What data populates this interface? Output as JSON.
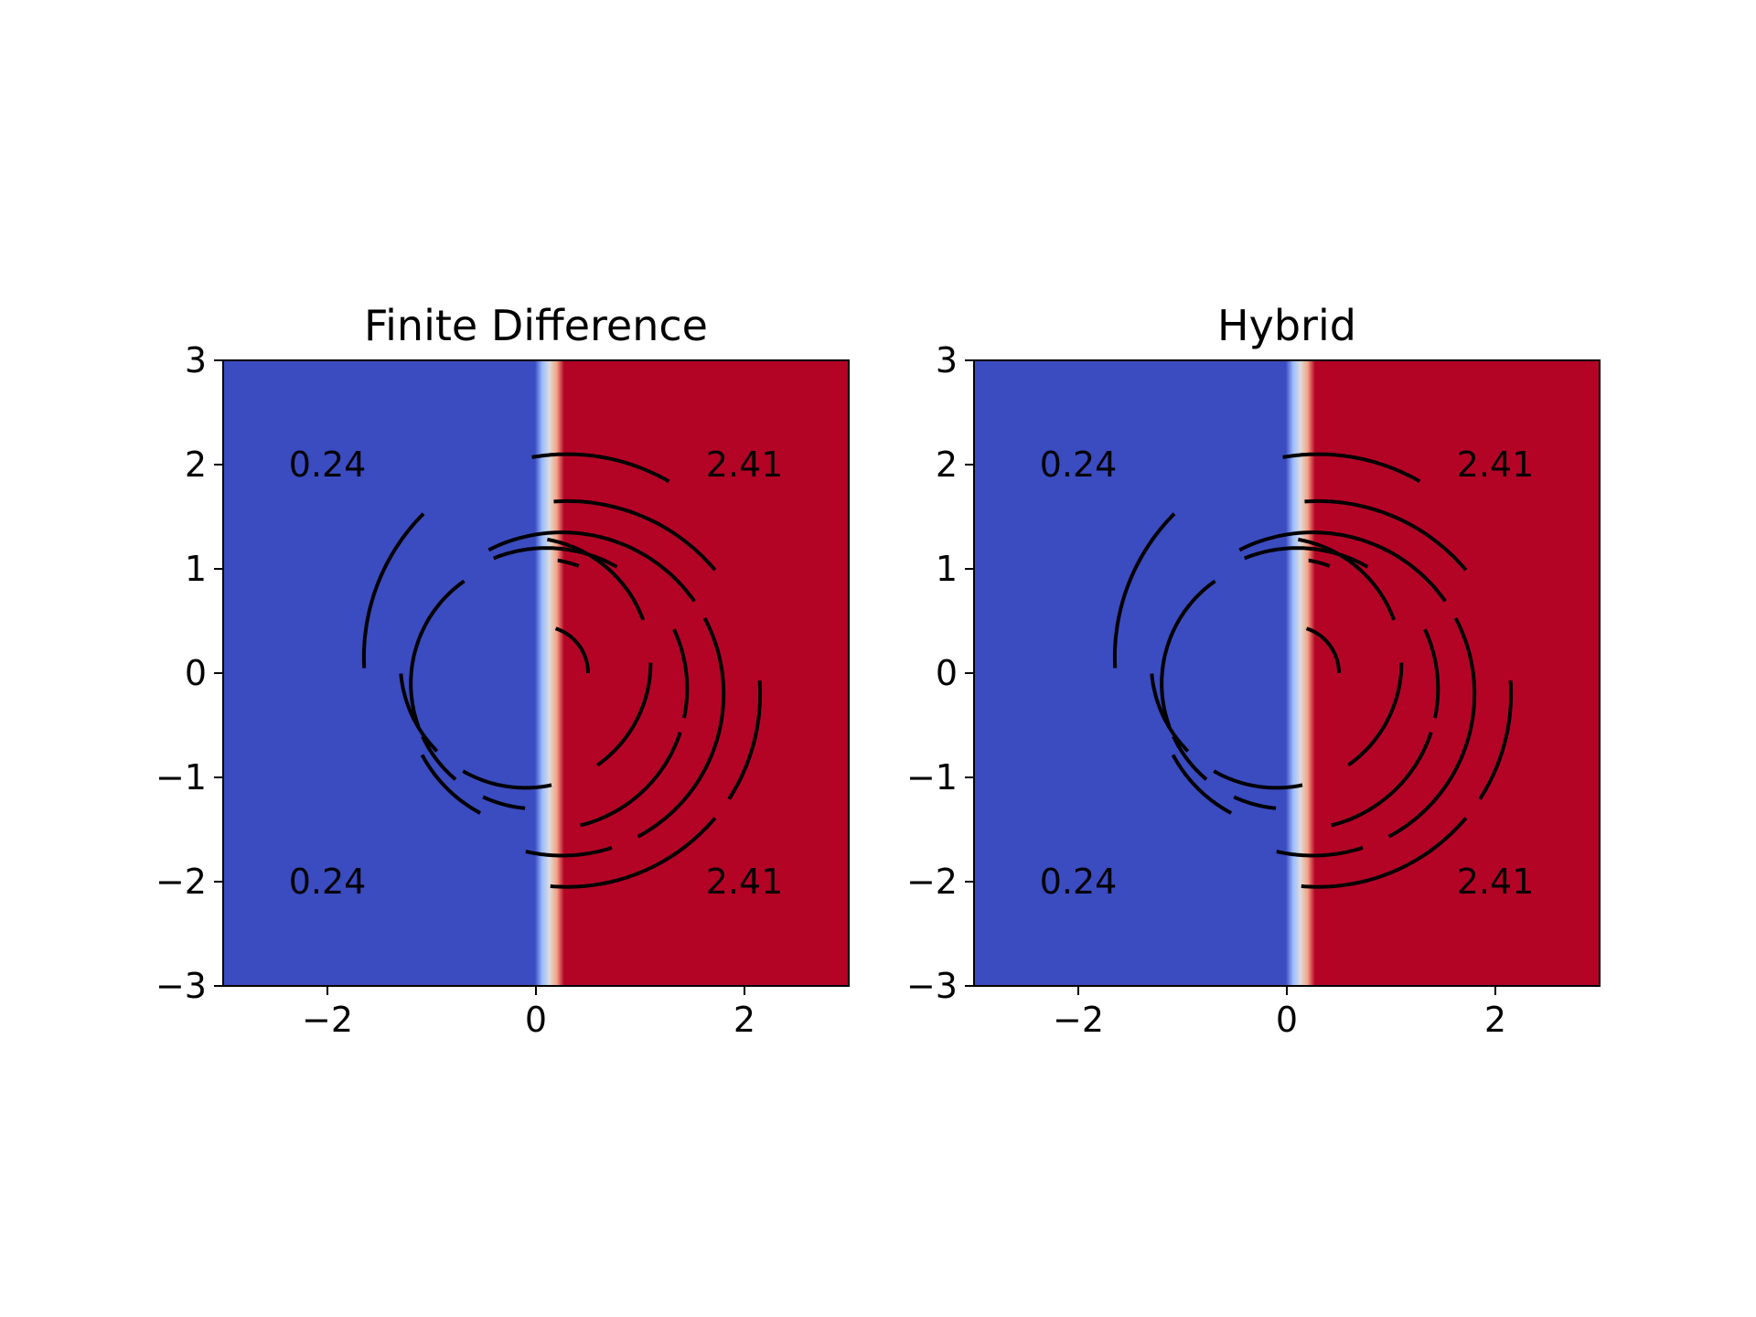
{
  "chart_data": [
    {
      "type": "heatmap",
      "title": "Finite Difference",
      "xlabel": "",
      "ylabel": "",
      "xlim": [
        -3,
        3
      ],
      "ylim": [
        -3,
        3
      ],
      "xticks": [
        -2,
        0,
        2
      ],
      "xtick_labels": [
        "−2",
        "0",
        "2"
      ],
      "yticks": [
        -3,
        -2,
        -1,
        0,
        1,
        2,
        3
      ],
      "ytick_labels": [
        "−3",
        "−2",
        "−1",
        "0",
        "1",
        "2",
        "3"
      ],
      "colormap": "coolwarm",
      "colors": {
        "low": "#3b4cc0",
        "mid": "#dddddd",
        "high": "#b40426"
      },
      "interface": {
        "center_x": 0.13,
        "width": 0.28
      },
      "field_values": {
        "low": 0.24,
        "high": 2.41
      },
      "grid": false,
      "annotations": [
        {
          "text": "0.24",
          "x": -2.0,
          "y": 2.0
        },
        {
          "text": "2.41",
          "x": 2.0,
          "y": 2.0
        },
        {
          "text": "0.24",
          "x": -2.0,
          "y": -2.0
        },
        {
          "text": "2.41",
          "x": 2.0,
          "y": -2.0
        }
      ],
      "arcs": [
        {
          "cx": 0.3,
          "cy": 0.15,
          "r": 1.95,
          "from": 100,
          "to": 60
        },
        {
          "cx": 0.3,
          "cy": 0.15,
          "r": 1.95,
          "from": 135,
          "to": 183
        },
        {
          "cx": 0.3,
          "cy": -0.2,
          "r": 1.85,
          "from": 94,
          "to": 40
        },
        {
          "cx": 0.3,
          "cy": -0.2,
          "r": 1.85,
          "from": 4,
          "to": -33
        },
        {
          "cx": 0.3,
          "cy": -0.2,
          "r": 1.85,
          "from": -40,
          "to": -95
        },
        {
          "cx": 0.25,
          "cy": -0.2,
          "r": 1.55,
          "from": 117,
          "to": 35
        },
        {
          "cx": 0.25,
          "cy": -0.2,
          "r": 1.55,
          "from": 28,
          "to": -62
        },
        {
          "cx": 0.25,
          "cy": -0.2,
          "r": 1.55,
          "from": -72,
          "to": -103
        },
        {
          "cx": 0.1,
          "cy": -0.15,
          "r": 1.35,
          "from": 112,
          "to": 60
        },
        {
          "cx": 0.1,
          "cy": -0.15,
          "r": 1.35,
          "from": 25,
          "to": -12
        },
        {
          "cx": 0.1,
          "cy": -0.15,
          "r": 1.35,
          "from": -18,
          "to": -76
        },
        {
          "cx": 0.1,
          "cy": -0.15,
          "r": 1.35,
          "from": -118,
          "to": -152
        },
        {
          "cx": 0.0,
          "cy": -0.1,
          "r": 1.2,
          "from": 80,
          "to": 70
        },
        {
          "cx": 0.0,
          "cy": -0.1,
          "r": 1.2,
          "from": 125,
          "to": 200
        },
        {
          "cx": 0.0,
          "cy": -0.1,
          "r": 1.2,
          "from": 205,
          "to": 230
        },
        {
          "cx": 0.0,
          "cy": -0.1,
          "r": 1.2,
          "from": 245,
          "to": 265
        },
        {
          "cx": -0.1,
          "cy": 0.1,
          "r": 1.2,
          "from": 80,
          "to": 20
        },
        {
          "cx": -0.1,
          "cy": 0.1,
          "r": 1.2,
          "from": 0,
          "to": -55
        },
        {
          "cx": -0.1,
          "cy": 0.1,
          "r": 1.2,
          "from": -78,
          "to": -120
        },
        {
          "cx": -0.1,
          "cy": 0.1,
          "r": 1.2,
          "from": -135,
          "to": -175
        },
        {
          "cx": 0.05,
          "cy": 0.0,
          "r": 0.45,
          "from": 72,
          "to": 0
        }
      ]
    },
    {
      "type": "heatmap",
      "title": "Hybrid",
      "xlabel": "",
      "ylabel": "",
      "xlim": [
        -3,
        3
      ],
      "ylim": [
        -3,
        3
      ],
      "xticks": [
        -2,
        0,
        2
      ],
      "xtick_labels": [
        "−2",
        "0",
        "2"
      ],
      "yticks": [
        -3,
        -2,
        -1,
        0,
        1,
        2,
        3
      ],
      "ytick_labels": [
        "−3",
        "−2",
        "−1",
        "0",
        "1",
        "2",
        "3"
      ],
      "colormap": "coolwarm",
      "colors": {
        "low": "#3b4cc0",
        "mid": "#dddddd",
        "high": "#b40426"
      },
      "interface": {
        "center_x": 0.13,
        "width": 0.28
      },
      "field_values": {
        "low": 0.24,
        "high": 2.41
      },
      "grid": false,
      "annotations": [
        {
          "text": "0.24",
          "x": -2.0,
          "y": 2.0
        },
        {
          "text": "2.41",
          "x": 2.0,
          "y": 2.0
        },
        {
          "text": "0.24",
          "x": -2.0,
          "y": -2.0
        },
        {
          "text": "2.41",
          "x": 2.0,
          "y": -2.0
        }
      ],
      "arcs": [
        {
          "cx": 0.3,
          "cy": 0.15,
          "r": 1.95,
          "from": 100,
          "to": 60
        },
        {
          "cx": 0.3,
          "cy": 0.15,
          "r": 1.95,
          "from": 135,
          "to": 183
        },
        {
          "cx": 0.3,
          "cy": -0.2,
          "r": 1.85,
          "from": 94,
          "to": 40
        },
        {
          "cx": 0.3,
          "cy": -0.2,
          "r": 1.85,
          "from": 4,
          "to": -33
        },
        {
          "cx": 0.3,
          "cy": -0.2,
          "r": 1.85,
          "from": -40,
          "to": -95
        },
        {
          "cx": 0.25,
          "cy": -0.2,
          "r": 1.55,
          "from": 117,
          "to": 35
        },
        {
          "cx": 0.25,
          "cy": -0.2,
          "r": 1.55,
          "from": 28,
          "to": -62
        },
        {
          "cx": 0.25,
          "cy": -0.2,
          "r": 1.55,
          "from": -72,
          "to": -103
        },
        {
          "cx": 0.1,
          "cy": -0.15,
          "r": 1.35,
          "from": 112,
          "to": 60
        },
        {
          "cx": 0.1,
          "cy": -0.15,
          "r": 1.35,
          "from": 25,
          "to": -12
        },
        {
          "cx": 0.1,
          "cy": -0.15,
          "r": 1.35,
          "from": -18,
          "to": -76
        },
        {
          "cx": 0.1,
          "cy": -0.15,
          "r": 1.35,
          "from": -118,
          "to": -152
        },
        {
          "cx": 0.0,
          "cy": -0.1,
          "r": 1.2,
          "from": 80,
          "to": 70
        },
        {
          "cx": 0.0,
          "cy": -0.1,
          "r": 1.2,
          "from": 125,
          "to": 200
        },
        {
          "cx": 0.0,
          "cy": -0.1,
          "r": 1.2,
          "from": 205,
          "to": 230
        },
        {
          "cx": 0.0,
          "cy": -0.1,
          "r": 1.2,
          "from": 245,
          "to": 265
        },
        {
          "cx": -0.1,
          "cy": 0.1,
          "r": 1.2,
          "from": 80,
          "to": 20
        },
        {
          "cx": -0.1,
          "cy": 0.1,
          "r": 1.2,
          "from": 0,
          "to": -55
        },
        {
          "cx": -0.1,
          "cy": 0.1,
          "r": 1.2,
          "from": -78,
          "to": -120
        },
        {
          "cx": -0.1,
          "cy": 0.1,
          "r": 1.2,
          "from": -135,
          "to": -175
        },
        {
          "cx": 0.05,
          "cy": 0.0,
          "r": 0.45,
          "from": 72,
          "to": 0
        }
      ]
    }
  ]
}
